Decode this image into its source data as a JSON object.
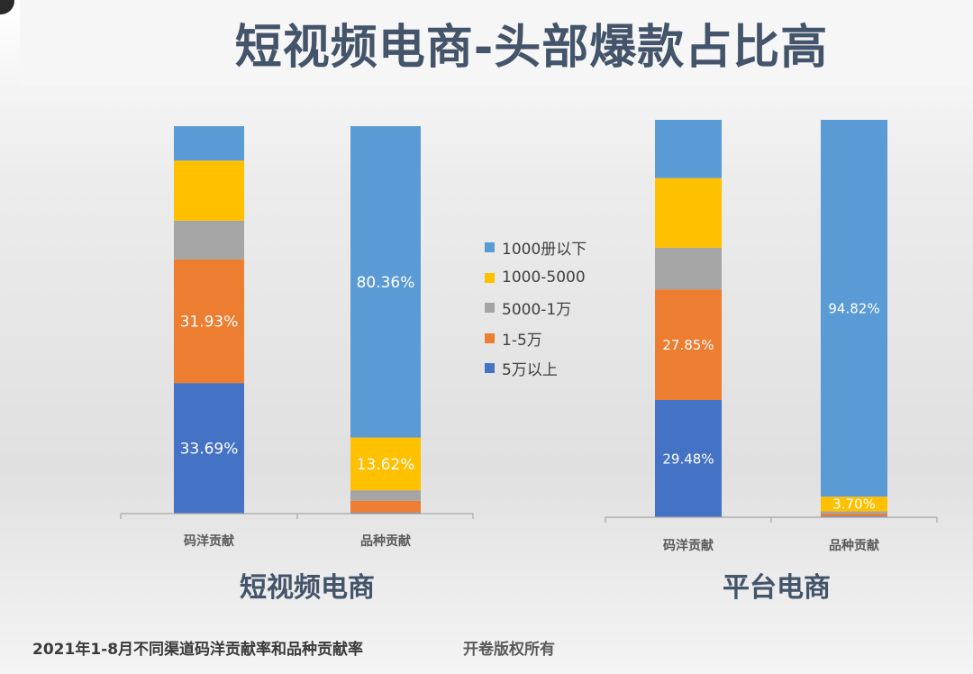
{
  "title": "短视频电商-头部爆款占比高",
  "footer": {
    "note": "2021年1-8月不同渠道码洋贡献率和品种贡献率",
    "copyright": "开卷版权所有"
  },
  "legend": [
    {
      "label": "1000册以下",
      "color": "#5b9bd5"
    },
    {
      "label": "1000-5000",
      "color": "#ffc000"
    },
    {
      "label": "5000-1万",
      "color": "#a5a5a5"
    },
    {
      "label": "1-5万",
      "color": "#ed7d31"
    },
    {
      "label": "5万以上",
      "color": "#4472c4"
    }
  ],
  "chart_data": [
    {
      "type": "bar",
      "stacked": true,
      "title": "短视频电商",
      "categories": [
        "码洋贡献",
        "品种贡献"
      ],
      "ylim": [
        0,
        100
      ],
      "series": [
        {
          "name": "5万以上",
          "values": [
            33.69,
            0.3
          ],
          "labels": [
            "33.69%",
            ""
          ]
        },
        {
          "name": "1-5万",
          "values": [
            31.93,
            3.0
          ],
          "labels": [
            "31.93%",
            ""
          ]
        },
        {
          "name": "5000-1万",
          "values": [
            10.0,
            2.72
          ],
          "labels": [
            "",
            ""
          ]
        },
        {
          "name": "1000-5000",
          "values": [
            15.5,
            13.62
          ],
          "labels": [
            "",
            "13.62%"
          ]
        },
        {
          "name": "1000册以下",
          "values": [
            8.88,
            80.36
          ],
          "labels": [
            "",
            "80.36%"
          ]
        }
      ]
    },
    {
      "type": "bar",
      "stacked": true,
      "title": "平台电商",
      "categories": [
        "码洋贡献",
        "品种贡献"
      ],
      "ylim": [
        0,
        100
      ],
      "series": [
        {
          "name": "5万以上",
          "values": [
            29.48,
            0.3
          ],
          "labels": [
            "29.48%",
            ""
          ]
        },
        {
          "name": "1-5万",
          "values": [
            27.85,
            0.6
          ],
          "labels": [
            "27.85%",
            ""
          ]
        },
        {
          "name": "5000-1万",
          "values": [
            10.5,
            0.58
          ],
          "labels": [
            "",
            ""
          ]
        },
        {
          "name": "1000-5000",
          "values": [
            17.5,
            3.7
          ],
          "labels": [
            "",
            "3.70%"
          ]
        },
        {
          "name": "1000册以下",
          "values": [
            14.67,
            94.82
          ],
          "labels": [
            "",
            "94.82%"
          ]
        }
      ]
    }
  ]
}
